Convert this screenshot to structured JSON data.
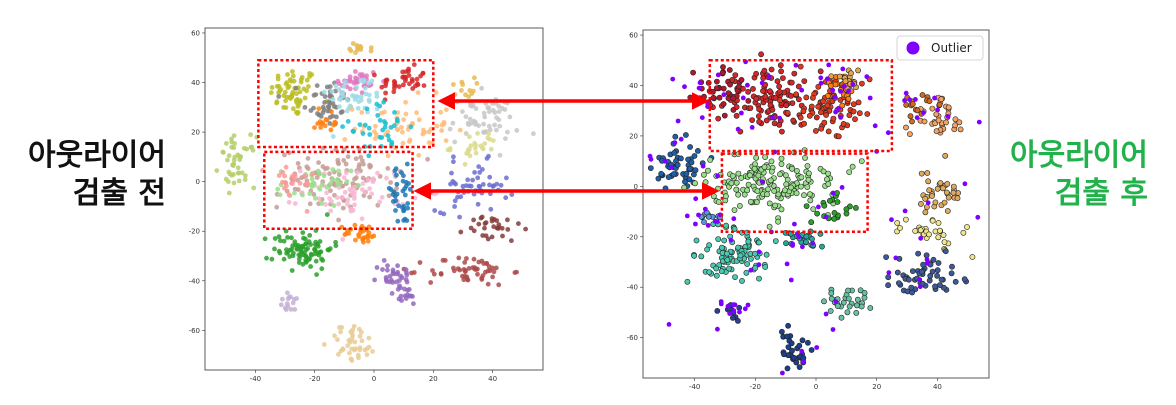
{
  "labels": {
    "before_line1": "아웃라이어",
    "before_line2": "검출 전",
    "after_line1": "아웃라이어",
    "after_line2": "검출 후"
  },
  "colors": {
    "after_label": "#22b24c",
    "arrow": "#ff0000",
    "highlight_box": "#ff0000",
    "outlier": "#7f00ff"
  },
  "chart_data": [
    {
      "type": "scatter",
      "panel": "before",
      "xlim": [
        -57,
        57
      ],
      "ylim": [
        -76,
        62
      ],
      "x_ticks": [
        "-40",
        "-20",
        "0",
        "20",
        "40"
      ],
      "y_ticks": [
        "60",
        "40",
        "20",
        "0",
        "-20",
        "-40",
        "-60"
      ],
      "grid": false,
      "clusters": [
        {
          "color": "#bcbd22",
          "center": [
            -27,
            36
          ],
          "spread": [
            4,
            5
          ],
          "count": 60
        },
        {
          "color": "#7f7f7f",
          "center": [
            -16,
            32
          ],
          "spread": [
            4,
            5
          ],
          "count": 45
        },
        {
          "color": "#e377c2",
          "center": [
            -6,
            40
          ],
          "spread": [
            4,
            3
          ],
          "count": 35
        },
        {
          "color": "#9edae5",
          "center": [
            -6,
            35
          ],
          "spread": [
            5,
            4
          ],
          "count": 45
        },
        {
          "color": "#d62728",
          "center": [
            10,
            40
          ],
          "spread": [
            4,
            3
          ],
          "count": 40
        },
        {
          "color": "#ffbb78",
          "center": [
            10,
            22
          ],
          "spread": [
            8,
            6
          ],
          "count": 55
        },
        {
          "color": "#17becf",
          "center": [
            2,
            22
          ],
          "spread": [
            5,
            5
          ],
          "count": 35
        },
        {
          "color": "#ff7f0e",
          "center": [
            -16,
            24
          ],
          "spread": [
            3,
            3
          ],
          "count": 15
        },
        {
          "color": "#e7ba52",
          "center": [
            -4,
            54
          ],
          "spread": [
            2,
            1
          ],
          "count": 12
        },
        {
          "color": "#e7ba52",
          "center": [
            30,
            38
          ],
          "spread": [
            2,
            2
          ],
          "count": 12
        },
        {
          "color": "#c7c7c7",
          "center": [
            37,
            25
          ],
          "spread": [
            6,
            5
          ],
          "count": 55
        },
        {
          "color": "#dbdb8d",
          "center": [
            34,
            14
          ],
          "spread": [
            4,
            3
          ],
          "count": 25
        },
        {
          "color": "#b5cf6b",
          "center": [
            -46,
            8
          ],
          "spread": [
            3,
            5
          ],
          "count": 45
        },
        {
          "color": "#c49c94",
          "center": [
            -12,
            1
          ],
          "spread": [
            10,
            6
          ],
          "count": 110
        },
        {
          "color": "#f7b6d2",
          "center": [
            -6,
            -4
          ],
          "spread": [
            9,
            5
          ],
          "count": 60
        },
        {
          "color": "#98df8a",
          "center": [
            -20,
            -2
          ],
          "spread": [
            6,
            4
          ],
          "count": 35
        },
        {
          "color": "#ff9896",
          "center": [
            -28,
            0
          ],
          "spread": [
            4,
            4
          ],
          "count": 20
        },
        {
          "color": "#1f77b4",
          "center": [
            9,
            -6
          ],
          "spread": [
            3,
            6
          ],
          "count": 35
        },
        {
          "color": "#6b6ecf",
          "center": [
            33,
            -2
          ],
          "spread": [
            6,
            5
          ],
          "count": 55
        },
        {
          "color": "#843c39",
          "center": [
            40,
            -19
          ],
          "spread": [
            5,
            3
          ],
          "count": 30
        },
        {
          "color": "#2ca02c",
          "center": [
            -24,
            -27
          ],
          "spread": [
            5,
            4
          ],
          "count": 90
        },
        {
          "color": "#ff7f0e",
          "center": [
            -4,
            -21
          ],
          "spread": [
            3,
            2
          ],
          "count": 30
        },
        {
          "color": "#ad494a",
          "center": [
            32,
            -36
          ],
          "spread": [
            7,
            3
          ],
          "count": 55
        },
        {
          "color": "#9467bd",
          "center": [
            7,
            -38
          ],
          "spread": [
            3,
            3
          ],
          "count": 30
        },
        {
          "color": "#9467bd",
          "center": [
            10,
            -46
          ],
          "spread": [
            3,
            2
          ],
          "count": 15
        },
        {
          "color": "#c5b0d5",
          "center": [
            -28,
            -49
          ],
          "spread": [
            2,
            2
          ],
          "count": 15
        },
        {
          "color": "#e7cb94",
          "center": [
            -7,
            -65
          ],
          "spread": [
            4,
            4
          ],
          "count": 40
        }
      ],
      "highlight_regions": [
        {
          "x": [
            -39,
            20
          ],
          "y": [
            14,
            49
          ]
        },
        {
          "x": [
            -37,
            13
          ],
          "y": [
            -19,
            12
          ]
        }
      ]
    },
    {
      "type": "scatter",
      "panel": "after",
      "xlim": [
        -57,
        57
      ],
      "ylim": [
        -76,
        62
      ],
      "x_ticks": [
        "-40",
        "-20",
        "0",
        "20",
        "40"
      ],
      "y_ticks": [
        "60",
        "40",
        "20",
        "0",
        "-20",
        "-40",
        "-60"
      ],
      "grid": false,
      "legend": {
        "placement": "top-right",
        "entries": [
          "Outlier"
        ]
      },
      "clusters": [
        {
          "color": "#d62728",
          "center": [
            -16,
            34
          ],
          "spread": [
            8,
            6
          ],
          "count": 110
        },
        {
          "color": "#e13a1f",
          "center": [
            4,
            32
          ],
          "spread": [
            7,
            5
          ],
          "count": 70
        },
        {
          "color": "#ff7f0e",
          "center": [
            8,
            37
          ],
          "spread": [
            3,
            4
          ],
          "count": 20
        },
        {
          "color": "#b2182b",
          "center": [
            -30,
            38
          ],
          "spread": [
            5,
            4
          ],
          "count": 40
        },
        {
          "color": "#e7a449",
          "center": [
            10,
            42
          ],
          "spread": [
            3,
            2
          ],
          "count": 20
        },
        {
          "color": "#f4a261",
          "center": [
            40,
            27
          ],
          "spread": [
            4,
            4
          ],
          "count": 35
        },
        {
          "color": "#d2691e",
          "center": [
            33,
            32
          ],
          "spread": [
            3,
            3
          ],
          "count": 15
        },
        {
          "color": "#e0a960",
          "center": [
            40,
            -2
          ],
          "spread": [
            4,
            4
          ],
          "count": 35
        },
        {
          "color": "#f0e68c",
          "center": [
            38,
            -18
          ],
          "spread": [
            5,
            3
          ],
          "count": 30
        },
        {
          "color": "#1f5fa8",
          "center": [
            -45,
            8
          ],
          "spread": [
            4,
            5
          ],
          "count": 55
        },
        {
          "color": "#98df8a",
          "center": [
            -14,
            1
          ],
          "spread": [
            11,
            6
          ],
          "count": 170
        },
        {
          "color": "#2ca02c",
          "center": [
            7,
            -8
          ],
          "spread": [
            4,
            3
          ],
          "count": 20
        },
        {
          "color": "#48c9b0",
          "center": [
            -27,
            -27
          ],
          "spread": [
            6,
            5
          ],
          "count": 90
        },
        {
          "color": "#26a69a",
          "center": [
            -4,
            -21
          ],
          "spread": [
            3,
            2
          ],
          "count": 25
        },
        {
          "color": "#66c2a5",
          "center": [
            10,
            -46
          ],
          "spread": [
            4,
            3
          ],
          "count": 30
        },
        {
          "color": "#3d5a98",
          "center": [
            35,
            -36
          ],
          "spread": [
            6,
            4
          ],
          "count": 55
        },
        {
          "color": "#1b3f8b",
          "center": [
            -8,
            -65
          ],
          "spread": [
            3,
            4
          ],
          "count": 30
        },
        {
          "color": "#2c3e94",
          "center": [
            -28,
            -50
          ],
          "spread": [
            2,
            2
          ],
          "count": 10
        },
        {
          "color": "#5b9bd5",
          "center": [
            -35,
            -12
          ],
          "spread": [
            2,
            1
          ],
          "count": 10
        }
      ],
      "outliers_count": 120,
      "highlight_regions": [
        {
          "x": [
            -35,
            25
          ],
          "y": [
            14,
            50
          ]
        },
        {
          "x": [
            -31,
            17
          ],
          "y": [
            -18,
            13
          ]
        }
      ]
    }
  ]
}
